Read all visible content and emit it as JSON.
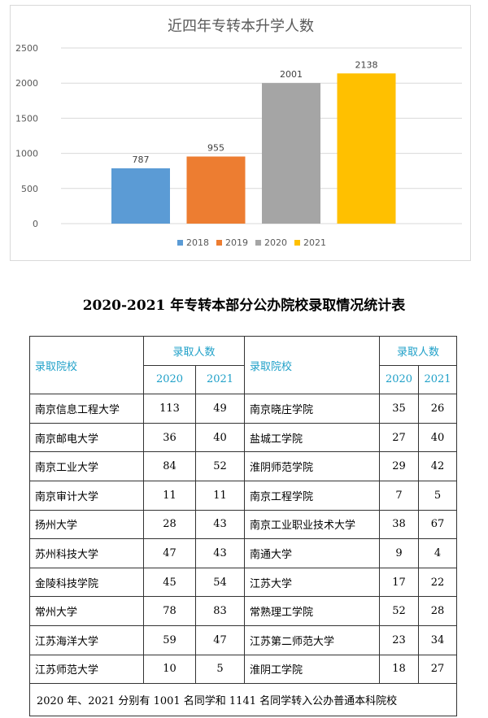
{
  "chart_data": {
    "type": "bar",
    "title": "近四年专转本升学人数",
    "categories": [
      "2018",
      "2019",
      "2020",
      "2021"
    ],
    "values": [
      787,
      955,
      2001,
      2138
    ],
    "colors": [
      "#5b9bd5",
      "#ed7d31",
      "#a5a5a5",
      "#ffc000"
    ],
    "ylim": [
      0,
      2500
    ],
    "yticks": [
      0,
      500,
      1000,
      1500,
      2000,
      2500
    ],
    "grid": true,
    "legend": "bottom",
    "data_labels": true
  },
  "table": {
    "title": "2020-2021 年专转本部分公办院校录取情况统计表",
    "header_school": "录取院校",
    "header_count": "录取人数",
    "year_a": "2020",
    "year_b": "2021",
    "rows": [
      {
        "left": {
          "name": "南京信息工程大学",
          "a": "113",
          "b": "49"
        },
        "right": {
          "name": "南京晓庄学院",
          "a": "35",
          "b": "26"
        }
      },
      {
        "left": {
          "name": "南京邮电大学",
          "a": "36",
          "b": "40"
        },
        "right": {
          "name": "盐城工学院",
          "a": "27",
          "b": "40"
        }
      },
      {
        "left": {
          "name": "南京工业大学",
          "a": "84",
          "b": "52"
        },
        "right": {
          "name": "淮阴师范学院",
          "a": "29",
          "b": "42"
        }
      },
      {
        "left": {
          "name": "南京审计大学",
          "a": "11",
          "b": "11"
        },
        "right": {
          "name": "南京工程学院",
          "a": "7",
          "b": "5"
        }
      },
      {
        "left": {
          "name": "扬州大学",
          "a": "28",
          "b": "43"
        },
        "right": {
          "name": "南京工业职业技术大学",
          "a": "38",
          "b": "67"
        }
      },
      {
        "left": {
          "name": "苏州科技大学",
          "a": "47",
          "b": "43"
        },
        "right": {
          "name": "南通大学",
          "a": "9",
          "b": "4"
        }
      },
      {
        "left": {
          "name": "金陵科技学院",
          "a": "45",
          "b": "54"
        },
        "right": {
          "name": "江苏大学",
          "a": "17",
          "b": "22"
        }
      },
      {
        "left": {
          "name": "常州大学",
          "a": "78",
          "b": "83"
        },
        "right": {
          "name": "常熟理工学院",
          "a": "52",
          "b": "28"
        }
      },
      {
        "left": {
          "name": "江苏海洋大学",
          "a": "59",
          "b": "47"
        },
        "right": {
          "name": "江苏第二师范大学",
          "a": "23",
          "b": "34"
        }
      },
      {
        "left": {
          "name": "江苏师范大学",
          "a": "10",
          "b": "5"
        },
        "right": {
          "name": "淮阴工学院",
          "a": "18",
          "b": "27"
        }
      }
    ],
    "note": "2020 年、2021 分别有 1001 名同学和 1141 名同学转入公办普通本科院校"
  }
}
